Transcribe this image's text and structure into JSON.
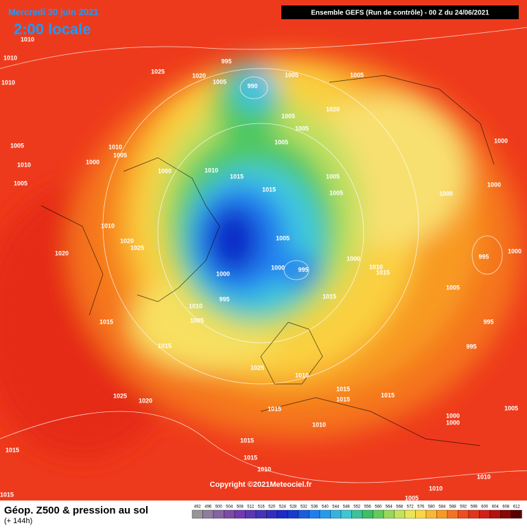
{
  "header": {
    "date": "Mercredi 30 juin 2021",
    "time": "2:00 locale",
    "run": "Ensemble GEFS  (Run de contrôle)  -  00 Z du 24/06/2021"
  },
  "legend": {
    "title": "Géop. Z500 & pression au sol",
    "subtitle": "(+ 144h)",
    "scale": [
      492,
      496,
      500,
      504,
      508,
      512,
      516,
      520,
      524,
      528,
      532,
      536,
      540,
      544,
      548,
      552,
      556,
      560,
      564,
      568,
      572,
      576,
      580,
      584,
      588,
      592,
      596,
      600,
      604,
      608,
      612
    ]
  },
  "copyright": "Copyright ©2021Meteociel.fr",
  "isobar_labels": [
    1010,
    1010,
    1010,
    1025,
    1020,
    995,
    1005,
    990,
    1005,
    1020,
    1005,
    1005,
    1005,
    1005,
    1000,
    1000,
    1000,
    1005,
    1005,
    1015,
    1015,
    1010,
    1000,
    1000,
    1005,
    1010,
    1005,
    1010,
    1005,
    1010,
    1020,
    1025,
    1020,
    1005,
    1000,
    995,
    1000,
    995,
    1010,
    1005,
    1015,
    1015,
    1025,
    1010,
    1000,
    1010,
    1015,
    1015,
    1005,
    995,
    995,
    995,
    1000,
    1015,
    1015,
    1015,
    1000,
    1000,
    1005,
    1015,
    1010,
    1015,
    1015,
    1010,
    1025,
    1020,
    1015,
    1015,
    1010,
    1010,
    1005
  ]
}
